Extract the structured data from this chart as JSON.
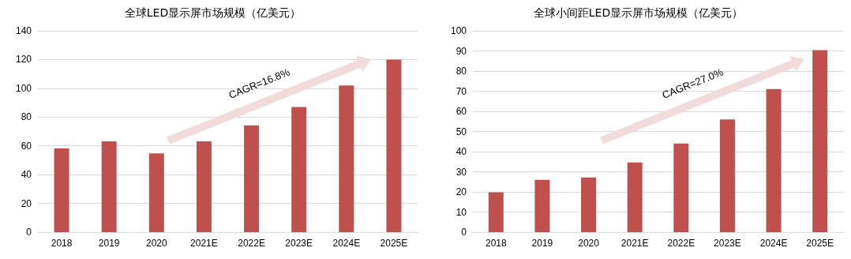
{
  "chart_data": [
    {
      "type": "bar",
      "title": "全球LED显示屏市场规模（亿美元）",
      "categories": [
        "2018",
        "2019",
        "2020",
        "2021E",
        "2022E",
        "2023E",
        "2024E",
        "2025E"
      ],
      "values": [
        58.2,
        63.2,
        54.8,
        63.2,
        74.2,
        87,
        102,
        120
      ],
      "color": "#c0504d",
      "ylim": [
        0,
        140
      ],
      "yticks": [
        0,
        20,
        40,
        60,
        80,
        100,
        120,
        140
      ],
      "grid": "y",
      "annotations": [
        "CAGR=16.8%"
      ]
    },
    {
      "type": "bar",
      "title": "全球小间距LED显示屏市场规模（亿美元）",
      "categories": [
        "2018",
        "2019",
        "2020",
        "2021E",
        "2022E",
        "2023E",
        "2024E",
        "2025E"
      ],
      "values": [
        19.8,
        26,
        27.2,
        34.6,
        44,
        56,
        71.1,
        90.4
      ],
      "color": "#c0504d",
      "ylim": [
        0,
        100
      ],
      "yticks": [
        0,
        10,
        20,
        30,
        40,
        50,
        60,
        70,
        80,
        90,
        100
      ],
      "grid": "y",
      "annotations": [
        "CAGR=27.0%"
      ]
    }
  ]
}
